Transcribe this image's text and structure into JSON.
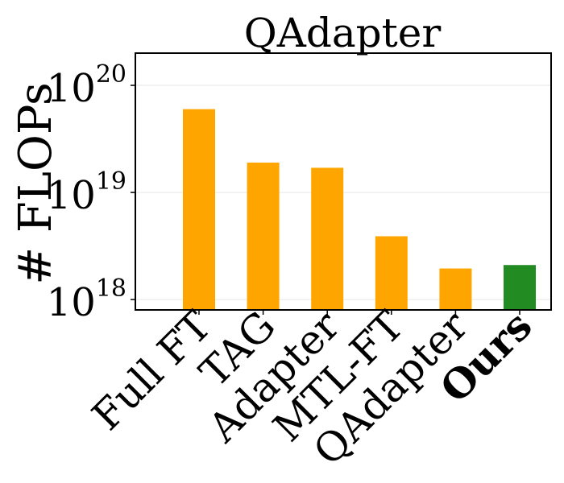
{
  "chart_data": {
    "type": "bar",
    "title": "QAdapter",
    "xlabel": "",
    "ylabel": "# FLOPs",
    "yscale": "log",
    "ylim": [
      8e+17,
      2e+20
    ],
    "grid": true,
    "categories": [
      "Full FT",
      "TAG",
      "Adapter",
      "MTL-FT",
      "QAdapter",
      "Ours"
    ],
    "values": [
      6e+19,
      1.9e+19,
      1.7e+19,
      3.9e+18,
      1.95e+18,
      2.1e+18
    ],
    "emphasized_category": "Ours",
    "colors": {
      "baseline": "#ffa500",
      "ours": "#228b22"
    },
    "yticks": [
      {
        "base": "10",
        "exp": "18",
        "value": 1e+18
      },
      {
        "base": "10",
        "exp": "19",
        "value": 1e+19
      },
      {
        "base": "10",
        "exp": "20",
        "value": 1e+20
      }
    ]
  }
}
